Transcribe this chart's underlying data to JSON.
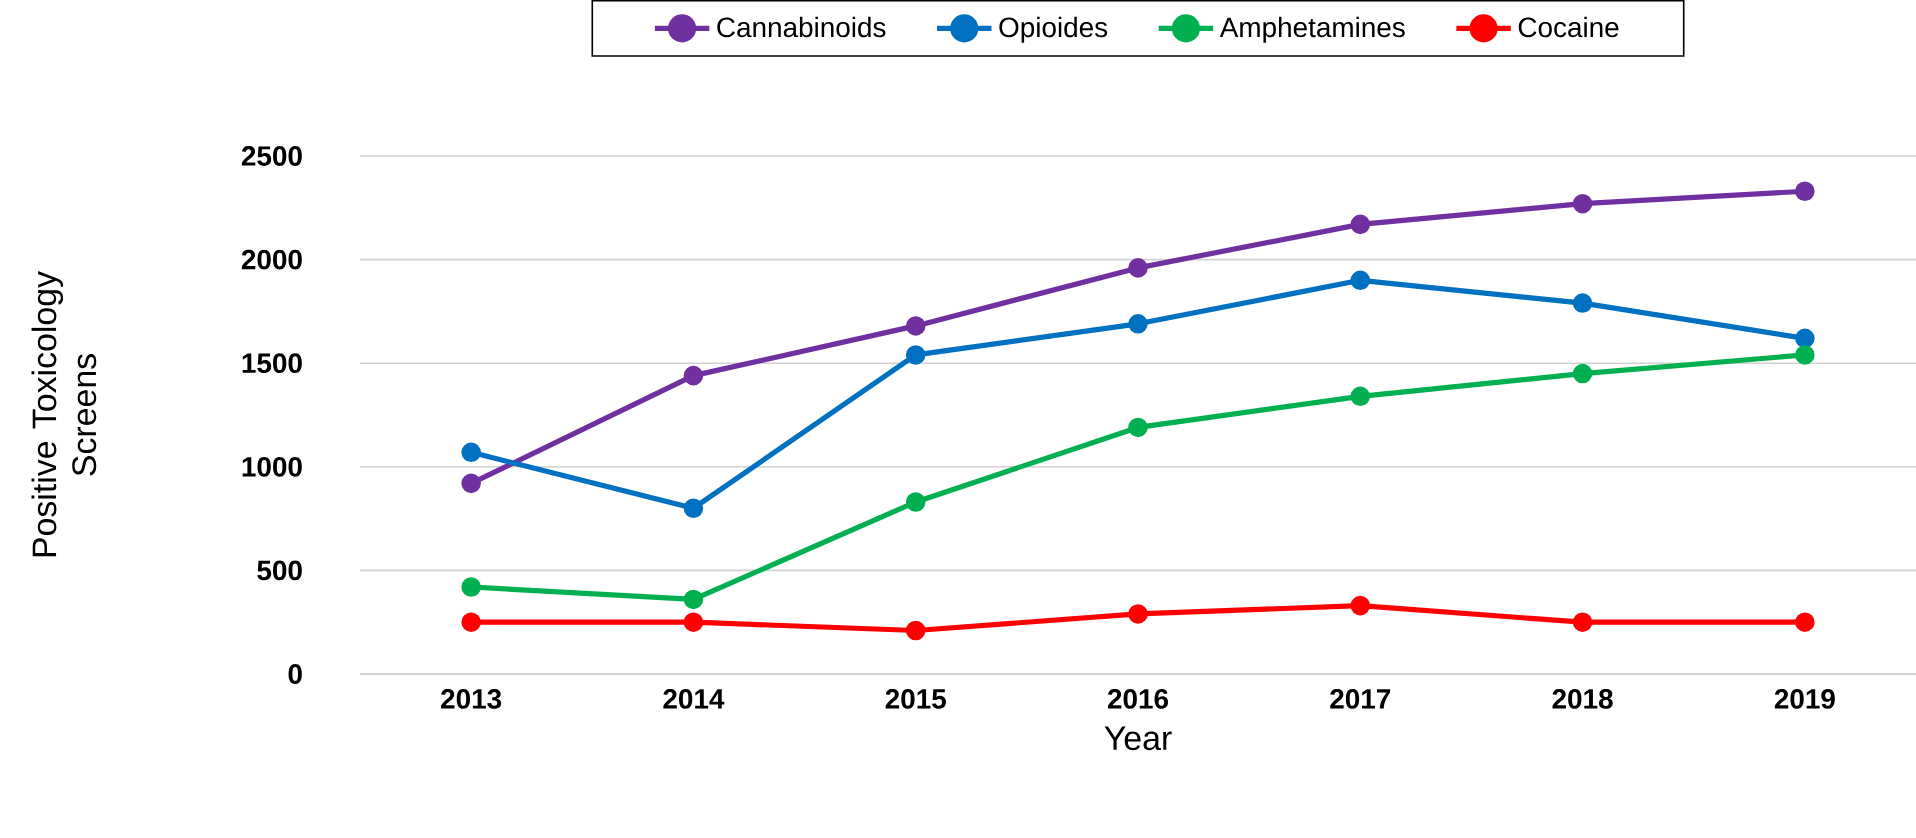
{
  "chart_data": {
    "type": "line",
    "xlabel": "Year",
    "ylabel": "Positive Toxicology Screens",
    "categories": [
      "2013",
      "2014",
      "2015",
      "2016",
      "2017",
      "2018",
      "2019"
    ],
    "series": [
      {
        "name": "Cannabinoids",
        "color": "#7030a0",
        "values": [
          920,
          1440,
          1680,
          1960,
          2170,
          2270,
          2330
        ]
      },
      {
        "name": "Opioides",
        "color": "#0070c0",
        "values": [
          1070,
          800,
          1540,
          1690,
          1900,
          1790,
          1620
        ]
      },
      {
        "name": "Amphetamines",
        "color": "#00b050",
        "values": [
          420,
          360,
          830,
          1190,
          1340,
          1450,
          1540
        ]
      },
      {
        "name": "Cocaine",
        "color": "#ff0000",
        "values": [
          250,
          250,
          210,
          290,
          330,
          250,
          250
        ]
      }
    ],
    "ylim": [
      0,
      2500
    ],
    "yticks": [
      0,
      500,
      1000,
      1500,
      2000,
      2500
    ],
    "grid": "y",
    "legend": "top",
    "marker": "circle",
    "line_style": "solid"
  }
}
